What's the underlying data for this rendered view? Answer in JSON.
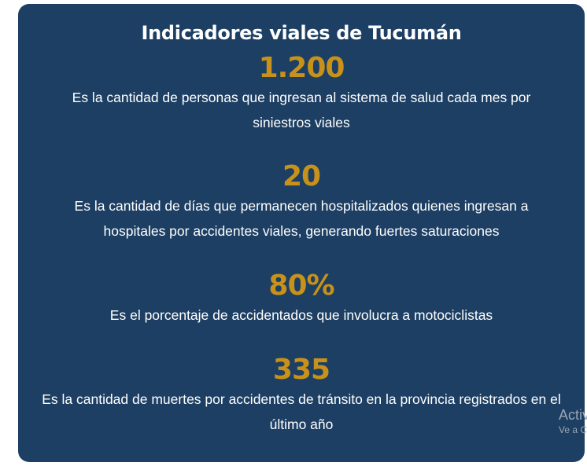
{
  "card": {
    "title": "Indicadores viales de Tucumán",
    "stats": [
      {
        "value": "1.200",
        "description": "Es la cantidad de personas que ingresan al sistema de salud cada mes por siniestros viales"
      },
      {
        "value": "20",
        "description": "Es la cantidad de días que permanecen hospitalizados quienes ingresan a hospitales por accidentes viales, generando fuertes saturaciones"
      },
      {
        "value": "80%",
        "description": "Es el porcentaje de accidentados que involucra a motociclistas"
      },
      {
        "value": "335",
        "description": "Es la cantidad de muertes por accidentes de tránsito en la provincia registrados en el último año"
      }
    ]
  },
  "watermark": {
    "line1": "Activ",
    "line2": "Ve a C"
  },
  "colors": {
    "card_background": "#1d3f63",
    "accent": "#c8911a",
    "text": "#ffffff"
  }
}
